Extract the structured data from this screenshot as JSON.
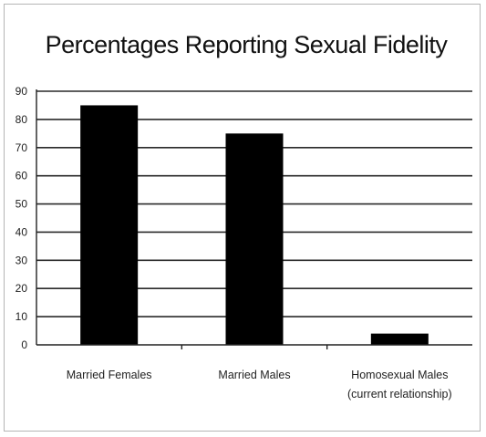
{
  "chart_data": {
    "type": "bar",
    "title": "Percentages Reporting Sexual Fidelity",
    "xlabel": "",
    "ylabel": "",
    "categories": [
      [
        "Married Females"
      ],
      [
        "Married Males"
      ],
      [
        "Homosexual Males",
        "(current relationship)"
      ]
    ],
    "values": [
      85,
      75,
      4
    ],
    "ylim": [
      0,
      90
    ],
    "yticks": [
      0,
      10,
      20,
      30,
      40,
      50,
      60,
      70,
      80,
      90
    ],
    "grid": true,
    "legend": "none",
    "colors": {
      "bar": "#000000",
      "grid": "#2a2a2a"
    }
  }
}
